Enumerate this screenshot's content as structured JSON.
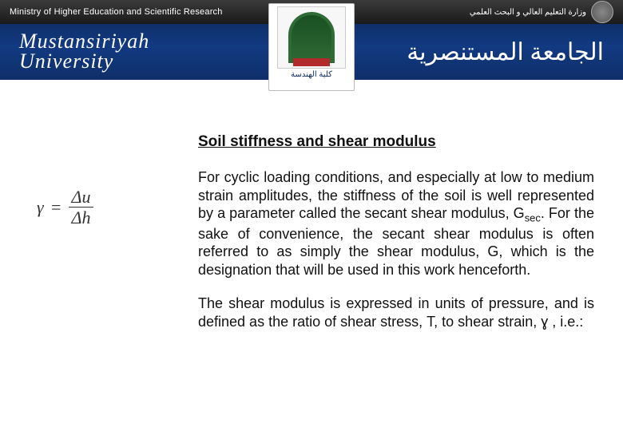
{
  "header": {
    "ministry_en": "Ministry of Higher Education and Scientific Research",
    "ministry_ar": "وزارة التعليم العالي و البحث العلمي",
    "university_en_line1": "Mustansiriyah",
    "university_en_line2": "University",
    "university_ar": "الجامعة المستنصرية",
    "faculty_ar": "كلية الهندسة",
    "colors": {
      "topbar_bg": "#1a1a1a",
      "band_bg": "#123a82",
      "crest_green": "#2f6b36",
      "crest_red": "#b22a2a"
    }
  },
  "formula": {
    "lhs": "γ",
    "eq": "=",
    "numerator": "Δu",
    "denominator": "Δh"
  },
  "body": {
    "title": "Soil stiffness and shear modulus",
    "p1_a": "For cyclic loading conditions, and especially at low to medium strain amplitudes, the stiffness of the soil is well represented by a parameter called the secant shear modulus, G",
    "p1_sub": "sec",
    "p1_b": ". For the sake of convenience, the secant shear modulus is often referred to as simply the shear modulus, G, which is the designation that will be used in this work henceforth.",
    "p2": "The shear modulus is expressed in units of pressure, and is defined as the ratio of shear stress, Τ, to shear strain, ɣ , i.e.:"
  }
}
